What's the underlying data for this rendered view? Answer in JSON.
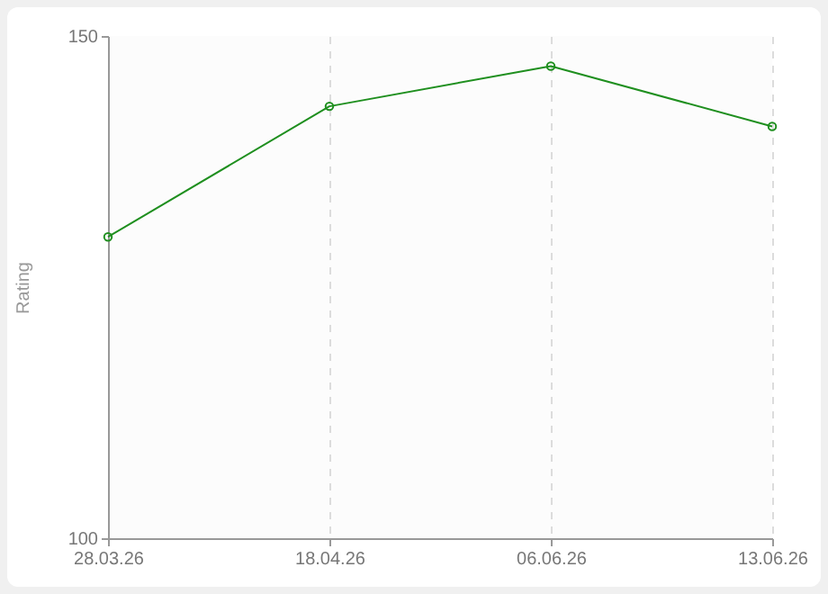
{
  "chart_data": {
    "type": "line",
    "ylabel": "Rating",
    "categories": [
      "28.03.26",
      "18.04.26",
      "06.06.26",
      "13.06.26"
    ],
    "series": [
      {
        "color": "#1f8f1f",
        "values": [
          130,
          143,
          147,
          141
        ]
      }
    ],
    "ylim": [
      100,
      150
    ],
    "yticks": [
      100,
      150
    ],
    "grid": "x",
    "marker": "circle",
    "line_style": "solid"
  }
}
